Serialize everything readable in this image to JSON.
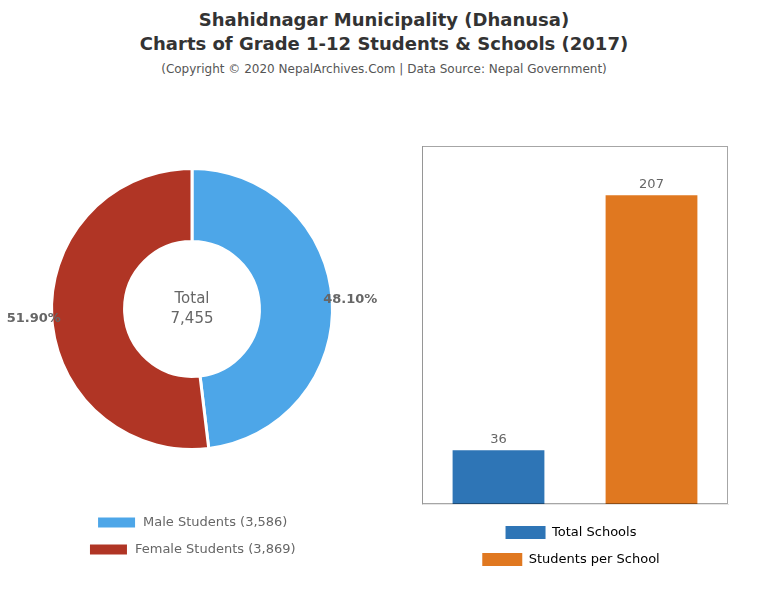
{
  "title": [
    "Shahidnagar Municipality (Dhanusa)",
    "Charts of Grade 1-12 Students & Schools (2017)"
  ],
  "subtitle": "(Copyright © 2020 NepalArchives.Com | Data Source: Nepal Government)",
  "chart_data": [
    {
      "type": "doughnut",
      "categories": [
        "Male Students (3,586)",
        "Female Students (3,869)"
      ],
      "values": [
        48.1,
        51.9
      ],
      "value_labels": [
        "48.10%",
        "51.90%"
      ],
      "colors": [
        "#4da6e8",
        "#b03525"
      ],
      "data_labels": true,
      "annotations": [
        "Total",
        "7,455"
      ],
      "legend": "bottom"
    },
    {
      "type": "bar",
      "categories": [
        "Total Schools",
        "Students per School"
      ],
      "values": [
        36,
        207
      ],
      "colors": [
        "#2e75b6",
        "#e07820"
      ],
      "ylim": [
        0,
        240
      ],
      "tick_labels": false,
      "grid": false,
      "data_labels": true,
      "legend": "bottom"
    }
  ]
}
